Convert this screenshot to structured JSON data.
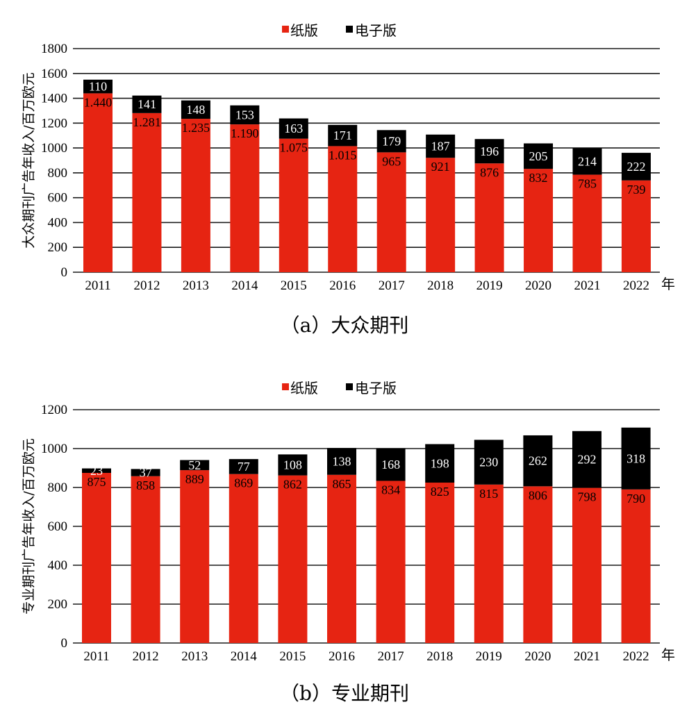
{
  "colors": {
    "paper": "#E62412",
    "electronic": "#000000"
  },
  "chart_data": [
    {
      "type": "bar",
      "stacked": true,
      "caption": "（a）大众期刊",
      "ylabel": "大众期刊广告年收入/百万欧元",
      "xunit": "年",
      "ylim": [
        0,
        1800
      ],
      "ytick_step": 200,
      "yticks": [
        "0",
        "200",
        "400",
        "600",
        "800",
        "1000",
        "1200",
        "1400",
        "1600",
        "1800"
      ],
      "grid": true,
      "legend": "top-center",
      "categories": [
        "2011",
        "2012",
        "2013",
        "2014",
        "2015",
        "2016",
        "2017",
        "2018",
        "2019",
        "2020",
        "2021",
        "2022"
      ],
      "series": [
        {
          "name": "纸版",
          "values": [
            1440,
            1281,
            1235,
            1190,
            1075,
            1015,
            965,
            921,
            876,
            832,
            785,
            739
          ],
          "labels": [
            "1.440",
            "1.281",
            "1.235",
            "1.190",
            "1.075",
            "1.015",
            "965",
            "921",
            "876",
            "832",
            "785",
            "739"
          ]
        },
        {
          "name": "电子版",
          "values": [
            110,
            141,
            148,
            153,
            163,
            171,
            179,
            187,
            196,
            205,
            214,
            222
          ],
          "labels": [
            "110",
            "141",
            "148",
            "153",
            "163",
            "171",
            "179",
            "187",
            "196",
            "205",
            "214",
            "222"
          ]
        }
      ]
    },
    {
      "type": "bar",
      "stacked": true,
      "caption": "（b）专业期刊",
      "ylabel": "专业期刊广告年收入/百万欧元",
      "xunit": "年",
      "ylim": [
        0,
        1200
      ],
      "ytick_step": 200,
      "yticks": [
        "0",
        "200",
        "400",
        "600",
        "800",
        "1000",
        "1200"
      ],
      "grid": true,
      "legend": "top-center",
      "categories": [
        "2011",
        "2012",
        "2013",
        "2014",
        "2015",
        "2016",
        "2017",
        "2018",
        "2019",
        "2020",
        "2021",
        "2022"
      ],
      "series": [
        {
          "name": "纸版",
          "values": [
            875,
            858,
            889,
            869,
            862,
            865,
            834,
            825,
            815,
            806,
            798,
            790
          ],
          "labels": [
            "875",
            "858",
            "889",
            "869",
            "862",
            "865",
            "834",
            "825",
            "815",
            "806",
            "798",
            "790"
          ]
        },
        {
          "name": "电子版",
          "values": [
            23,
            37,
            52,
            77,
            108,
            138,
            168,
            198,
            230,
            262,
            292,
            318
          ],
          "labels": [
            "23",
            "37",
            "52",
            "77",
            "108",
            "138",
            "168",
            "198",
            "230",
            "262",
            "292",
            "318"
          ]
        }
      ]
    }
  ]
}
